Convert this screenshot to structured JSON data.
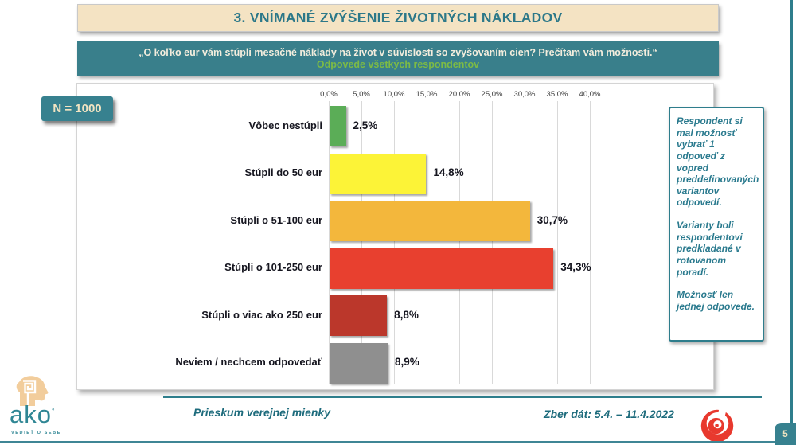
{
  "slide": {
    "title": "3. VNÍMANÉ ZVÝŠENIE ŽIVOTNÝCH NÁKLADOV",
    "question": "„O koľko eur vám stúpli mesačné náklady na život v súvislosti so zvyšovaním cien? Prečítam vám možnosti.“",
    "subtitle": "Odpovede všetkých respondentov",
    "sample_badge": "N = 1000",
    "page_number": "5"
  },
  "chart_data": {
    "type": "bar",
    "orientation": "horizontal",
    "categories": [
      "Vôbec nestúpli",
      "Stúpli do 50 eur",
      "Stúpli o 51-100 eur",
      "Stúpli o 101-250 eur",
      "Stúpli o viac ako 250 eur",
      "Neviem / nechcem odpovedať"
    ],
    "values": [
      2.5,
      14.8,
      30.7,
      34.3,
      8.8,
      8.9
    ],
    "value_labels": [
      "2,5%",
      "14,8%",
      "30,7%",
      "34,3%",
      "8,8%",
      "8,9%"
    ],
    "bar_colors": [
      "#5BAD57",
      "#FCF337",
      "#F3B73C",
      "#E8402F",
      "#BB372B",
      "#8F8F8F"
    ],
    "x_ticks": [
      "0,0%",
      "5,0%",
      "10,0%",
      "15,0%",
      "20,0%",
      "25,0%",
      "30,0%",
      "35,0%",
      "40,0%"
    ],
    "xlim": [
      0,
      45
    ],
    "xlabel": "",
    "ylabel": "",
    "grid": true,
    "legend": false
  },
  "note_box": {
    "paragraphs": [
      "Respondent si mal možnosť vybrať 1 odpoveď z vopred preddefinovaných variantov odpovedí.",
      "Varianty boli respondentovi predkladané v rotovanom poradí.",
      "Možnosť len jednej odpovede."
    ]
  },
  "footer": {
    "left_text": "Prieskum verejnej mienky",
    "right_text": "Zber dát: 5.4. – 11.4.2022",
    "logo_text": "ako",
    "logo_tagline": "VEDIEŤ O SEBE"
  },
  "colors": {
    "accent_teal": "#397F8B",
    "title_cream": "#F4E3C3",
    "subtitle_green": "#7DBB45",
    "logo_red": "#E8392E"
  }
}
